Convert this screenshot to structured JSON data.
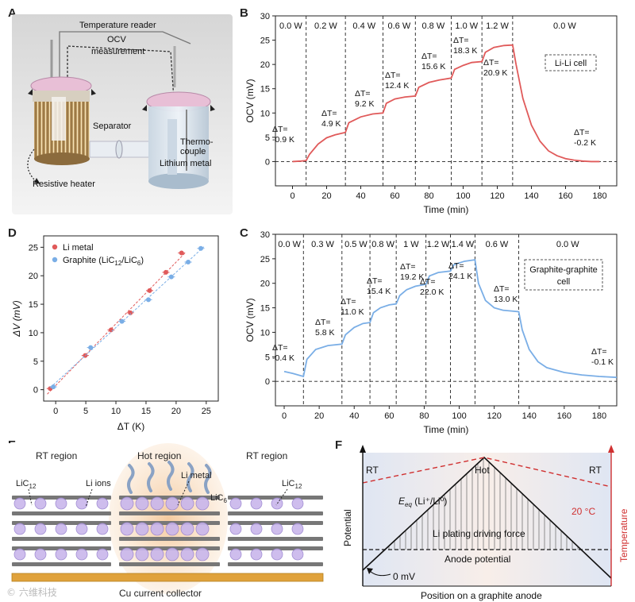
{
  "panel_letters": [
    "A",
    "B",
    "C",
    "D",
    "E",
    "F"
  ],
  "panelA": {
    "labels": {
      "temp_reader": "Temperature reader",
      "ocv": "OCV",
      "measurement": "measurement",
      "separator": "Separator",
      "thermo1": "Thermo-",
      "thermo2": "couple",
      "lithium": "Lithium metal",
      "heater": "Resistive heater"
    }
  },
  "panelB": {
    "chart_data": {
      "type": "line",
      "xlabel": "Time (min)",
      "ylabel": "OCV (mV)",
      "xlim": [
        -10,
        190
      ],
      "ylim": [
        -5,
        30
      ],
      "xticks": [
        0,
        20,
        40,
        60,
        80,
        100,
        120,
        140,
        160,
        180
      ],
      "yticks": [
        0,
        5,
        10,
        15,
        20,
        25,
        30
      ],
      "color": "#e05a5a",
      "legend": "Li-Li cell",
      "segments": [
        "0.0 W",
        "0.2 W",
        "0.4 W",
        "0.6 W",
        "0.8 W",
        "1.0 W",
        "1.2 W",
        "0.0 W"
      ],
      "boundaries": [
        8,
        31,
        53,
        72,
        93,
        111,
        129
      ],
      "series": [
        {
          "name": "Li-Li cell",
          "x": [
            0,
            5,
            8,
            10,
            15,
            20,
            25,
            31,
            33,
            40,
            47,
            53,
            55,
            60,
            66,
            72,
            74,
            80,
            86,
            93,
            95,
            100,
            105,
            111,
            113,
            118,
            124,
            129,
            131,
            135,
            140,
            145,
            150,
            155,
            160,
            165,
            170,
            175,
            180
          ],
          "y": [
            0,
            0.1,
            0.2,
            1.5,
            3.6,
            4.9,
            5.5,
            6.0,
            8.0,
            9.2,
            9.8,
            10.0,
            12.0,
            12.9,
            13.3,
            13.5,
            15.3,
            16.3,
            16.8,
            17.2,
            19.0,
            19.8,
            20.4,
            20.6,
            22.5,
            23.5,
            23.9,
            24.0,
            20.0,
            13.0,
            7.5,
            4.2,
            2.2,
            1.2,
            0.6,
            0.3,
            0.1,
            0.0,
            0.0
          ]
        }
      ],
      "annotations": [
        {
          "line1": "ΔT=",
          "line2": "-0.9 K"
        },
        {
          "line1": "ΔT=",
          "line2": "4.9 K"
        },
        {
          "line1": "ΔT=",
          "line2": "9.2 K"
        },
        {
          "line1": "ΔT=",
          "line2": "12.4 K"
        },
        {
          "line1": "ΔT=",
          "line2": "15.6 K"
        },
        {
          "line1": "ΔT=",
          "line2": "18.3 K"
        },
        {
          "line1": "ΔT=",
          "line2": "20.9 K"
        },
        {
          "line1": "ΔT=",
          "line2": "-0.2 K"
        }
      ]
    }
  },
  "panelC": {
    "chart_data": {
      "type": "line",
      "xlabel": "Time (min)",
      "ylabel": "OCV (mV)",
      "xlim": [
        -5,
        190
      ],
      "ylim": [
        -5,
        30
      ],
      "xticks": [
        0,
        20,
        40,
        60,
        80,
        100,
        120,
        140,
        160,
        180
      ],
      "yticks": [
        0,
        5,
        10,
        15,
        20,
        25,
        30
      ],
      "color": "#7aaee6",
      "legend1": "Graphite-graphite",
      "legend2": "cell",
      "segments": [
        "0.0 W",
        "0.3 W",
        "0.5 W",
        "0.8 W",
        "1 W",
        "1.2 W",
        "1.4 W",
        "0.6 W",
        "0.0 W"
      ],
      "boundaries": [
        11,
        33,
        49,
        64,
        81,
        95,
        109,
        134
      ],
      "series": [
        {
          "name": "Graphite-graphite cell",
          "x": [
            0,
            5,
            11,
            13,
            18,
            25,
            33,
            35,
            40,
            45,
            49,
            51,
            55,
            60,
            64,
            66,
            70,
            75,
            81,
            83,
            88,
            95,
            97,
            103,
            109,
            111,
            115,
            120,
            125,
            134,
            136,
            140,
            145,
            150,
            160,
            170,
            180,
            190
          ],
          "y": [
            2,
            1.6,
            1.0,
            4.5,
            6.5,
            7.3,
            7.6,
            9.5,
            11.0,
            11.8,
            12.0,
            14.0,
            15.0,
            15.6,
            15.8,
            17.5,
            18.7,
            19.4,
            19.8,
            21.5,
            22.2,
            22.5,
            23.8,
            24.5,
            24.8,
            20.0,
            16.5,
            15.0,
            14.5,
            14.2,
            10.5,
            6.5,
            4.0,
            2.8,
            1.8,
            1.3,
            1.0,
            0.8
          ]
        }
      ],
      "annotations": [
        {
          "line1": "ΔT=",
          "line2": "-0.4 K"
        },
        {
          "line1": "ΔT=",
          "line2": "5.8 K"
        },
        {
          "line1": "ΔT=",
          "line2": "11.0 K"
        },
        {
          "line1": "ΔT=",
          "line2": "15.4 K"
        },
        {
          "line1": "ΔT=",
          "line2": "19.2 K"
        },
        {
          "line1": "ΔT=",
          "line2": "22.0 K"
        },
        {
          "line1": "ΔT=",
          "line2": "24.1 K"
        },
        {
          "line1": "ΔT=",
          "line2": "13.0 K"
        },
        {
          "line1": "ΔT=",
          "line2": "-0.1 K"
        }
      ]
    }
  },
  "panelD": {
    "chart_data": {
      "type": "scatter",
      "xlabel": "ΔT (K)",
      "ylabel": "ΔV (mV)",
      "xlim": [
        -2,
        27
      ],
      "ylim": [
        -2,
        27
      ],
      "xticks": [
        0,
        5,
        10,
        15,
        20,
        25
      ],
      "yticks": [
        0,
        5,
        10,
        15,
        20,
        25
      ],
      "series": [
        {
          "name": "Li metal",
          "color": "#e05a5a",
          "x": [
            -0.9,
            4.9,
            9.2,
            12.4,
            15.6,
            18.3,
            20.9
          ],
          "y": [
            0.2,
            6.0,
            10.5,
            13.5,
            17.4,
            20.6,
            24.0
          ]
        },
        {
          "name": "Graphite",
          "color": "#7aaee6",
          "x": [
            -0.4,
            5.8,
            11.0,
            15.4,
            19.2,
            22.0,
            24.1
          ],
          "y": [
            0.5,
            7.4,
            12.0,
            15.8,
            19.8,
            22.4,
            24.8
          ]
        }
      ],
      "legend": [
        {
          "label": "Li metal"
        },
        {
          "label": "Graphite (LiC",
          "sub1": "12",
          "mid": "/LiC",
          "sub2": "6",
          "end": ")"
        }
      ]
    }
  },
  "panelE": {
    "rt_left": "RT region",
    "hot": "Hot region",
    "rt_right": "RT region",
    "lic12": "LiC",
    "lic12_sub": "12",
    "li_ions": "Li ions",
    "li_metal": "Li metal",
    "lic6": "LiC",
    "lic6_sub": "6",
    "lic12b": "LiC",
    "lic12b_sub": "12",
    "collector": "Cu current collector"
  },
  "panelF": {
    "rt_left": "RT",
    "hot": "Hot",
    "rt_right": "RT",
    "eeq_main": "E",
    "eeq_sub": "eq",
    "eeq_rest": " (Li⁺/Li⁰)",
    "temp_label": "20 °C",
    "driving": "Li plating driving force",
    "anode": "Anode potential",
    "zero": "0 mV",
    "potential": "Potential",
    "temperature": "Temperature",
    "xlabel": "Position on a graphite anode",
    "accent": "#d03030"
  },
  "watermark": "© 六维科技"
}
